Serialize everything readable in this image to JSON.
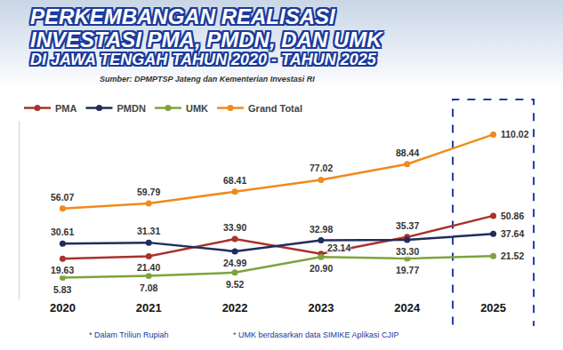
{
  "chart_data": {
    "type": "line",
    "title": [
      "PERKEMBANGAN REALISASI",
      "INVESTASI PMA, PMDN, DAN UMK",
      "DI JAWA TENGAH TAHUN 2020 - TAHUN 2025"
    ],
    "subtitle": "Sumber: DPMPTSP Jateng dan Kementerian Investasi RI",
    "annotations": [
      "* Dalam Triliun Rupiah",
      "* UMK berdasarkan data SIMIKE Aplikasi CJIP"
    ],
    "categories": [
      "2020",
      "2021",
      "2022",
      "2023",
      "2024",
      "2025"
    ],
    "series": [
      {
        "name": "PMA",
        "color": "#a8322d",
        "values": [
          19.63,
          21.4,
          33.9,
          23.14,
          35.37,
          50.86
        ],
        "value_labels": [
          "19.63",
          "21.40",
          "33.90",
          "23.14",
          "35.37",
          "50.86"
        ]
      },
      {
        "name": "PMDN",
        "color": "#1f2d5c",
        "values": [
          30.61,
          31.31,
          24.99,
          32.98,
          33.3,
          37.64
        ],
        "value_labels": [
          "30.61",
          "31.31",
          "24.99",
          "32.98",
          "33.30",
          "37.64"
        ]
      },
      {
        "name": "UMK",
        "color": "#7fa33c",
        "values": [
          5.83,
          7.08,
          9.52,
          20.9,
          19.77,
          21.52
        ],
        "value_labels": [
          "5.83",
          "7.08",
          "9.52",
          "20.90",
          "19.77",
          "21.52"
        ]
      },
      {
        "name": "Grand Total",
        "color": "#f08a1c",
        "values": [
          56.07,
          59.79,
          68.41,
          77.02,
          88.44,
          110.02
        ],
        "value_labels": [
          "56.07",
          "59.79",
          "68.41",
          "77.02",
          "88.44",
          "110.02"
        ]
      }
    ],
    "ylim": [
      -10,
      120
    ],
    "grid": false,
    "legend": "top left",
    "data_labels": true,
    "tick_labels": "x",
    "marker": "circle"
  }
}
